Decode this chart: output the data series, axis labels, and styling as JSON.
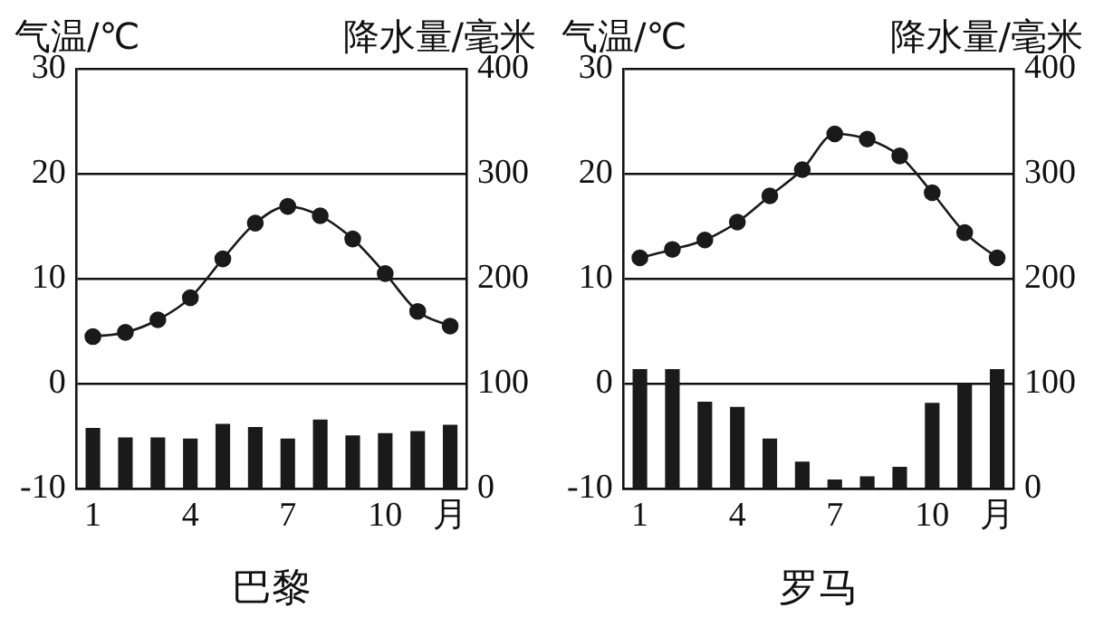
{
  "chart_data": [
    {
      "type": "bar",
      "title": "巴黎",
      "ylabel": "气温/℃",
      "y2label": "降水量/毫米",
      "categories": [
        "1",
        null,
        null,
        "4",
        null,
        null,
        "7",
        null,
        null,
        "10",
        null,
        "月"
      ],
      "series": [
        {
          "axis": "y2",
          "color": "#1a1a1a",
          "values": [
            58,
            49,
            49,
            48,
            62,
            59,
            48,
            66,
            51,
            53,
            55,
            61
          ]
        },
        {
          "type": "line",
          "axis": "y",
          "color": "#1a1a1a",
          "marker": "circle",
          "values": [
            4.5,
            4.9,
            6.1,
            8.2,
            11.9,
            15.3,
            16.9,
            16.0,
            13.8,
            10.5,
            6.9,
            5.5
          ]
        }
      ],
      "ylim": [
        -10,
        30
      ],
      "yticks": [
        -10,
        0,
        10,
        20,
        30
      ],
      "y2lim": [
        0,
        400
      ],
      "y2ticks": [
        0,
        100,
        200,
        300,
        400
      ],
      "grid": "y",
      "legend": false
    },
    {
      "type": "bar",
      "title": "罗马",
      "ylabel": "气温/℃",
      "y2label": "降水量/毫米",
      "categories": [
        "1",
        null,
        null,
        "4",
        null,
        null,
        "7",
        null,
        null,
        "10",
        null,
        "月"
      ],
      "series": [
        {
          "axis": "y2",
          "color": "#1a1a1a",
          "values": [
            114,
            114,
            83,
            78,
            48,
            26,
            9,
            12,
            21,
            82,
            100,
            114
          ]
        },
        {
          "type": "line",
          "axis": "y",
          "color": "#1a1a1a",
          "marker": "circle",
          "values": [
            12.0,
            12.8,
            13.7,
            15.4,
            17.9,
            20.4,
            23.8,
            23.3,
            21.7,
            18.2,
            14.4,
            12.0
          ]
        }
      ],
      "ylim": [
        -10,
        30
      ],
      "yticks": [
        -10,
        0,
        10,
        20,
        30
      ],
      "y2lim": [
        0,
        400
      ],
      "y2ticks": [
        0,
        100,
        200,
        300,
        400
      ],
      "grid": "y",
      "legend": false
    }
  ]
}
